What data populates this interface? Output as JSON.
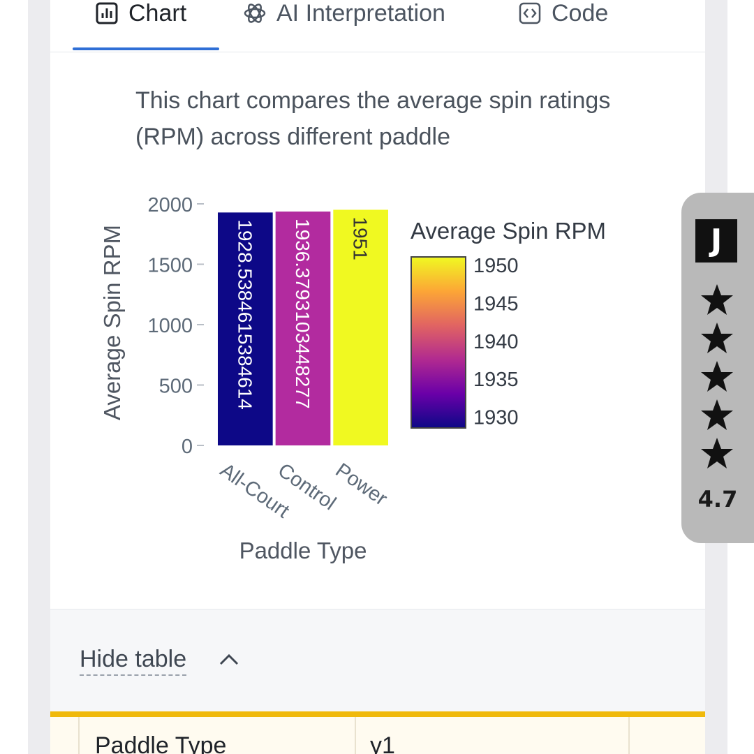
{
  "tabs": [
    {
      "label": "Chart",
      "icon": "bar-chart-icon",
      "active": true
    },
    {
      "label": "AI Interpretation",
      "icon": "ai-sparkle-icon",
      "active": false
    },
    {
      "label": "Code",
      "icon": "code-icon",
      "active": false
    }
  ],
  "description": "This chart compares the average spin ratings (RPM) across different paddle",
  "chart_data": {
    "type": "bar",
    "categories": [
      "All-Court",
      "Control",
      "Power"
    ],
    "values": [
      1928.5384615384614,
      1936.3793103448277,
      1951
    ],
    "data_labels": [
      "1928.5384615384614",
      "1936.3793103448277",
      "1951"
    ],
    "xlabel": "Paddle Type",
    "ylabel": "Average Spin RPM",
    "ylim": [
      0,
      2000
    ],
    "yticks": [
      0,
      500,
      1000,
      1500,
      2000
    ],
    "colorbar": {
      "title": "Average Spin RPM",
      "range": [
        1928.5,
        1951
      ],
      "ticks": [
        1930,
        1935,
        1940,
        1945,
        1950
      ],
      "colorscale": "plasma"
    },
    "bar_colors": [
      "#0d0887",
      "#b22b9f",
      "#f0f921"
    ],
    "data_label_colors": [
      "#ffffff",
      "#ffffff",
      "#333333"
    ]
  },
  "table_toggle": {
    "label": "Hide table"
  },
  "table": {
    "headers": [
      "Paddle Type",
      "y1"
    ]
  },
  "rating_widget": {
    "logo": "J",
    "stars": 5,
    "score": "4.7"
  },
  "colors": {
    "accent": "#2f6fd6",
    "table_header": "#f0b90b"
  }
}
